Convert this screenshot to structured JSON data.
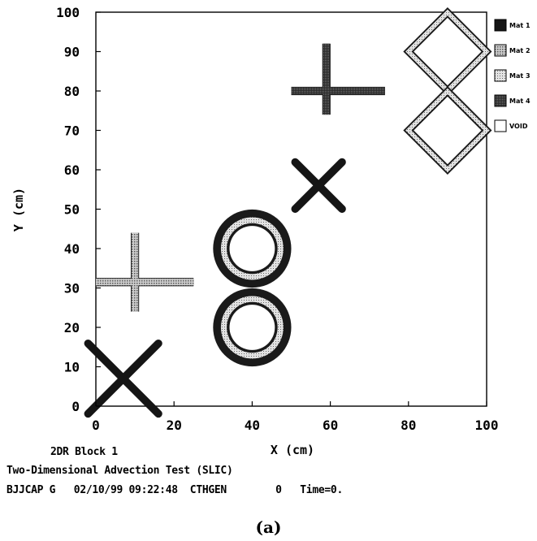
{
  "chart_data": {
    "type": "scatter",
    "title": "",
    "xlabel": "X (cm)",
    "ylabel": "Y (cm)",
    "xlim": [
      0,
      100
    ],
    "ylim": [
      0,
      100
    ],
    "x_ticks": [
      "0",
      "20",
      "40",
      "60",
      "80",
      "100"
    ],
    "y_ticks": [
      "0",
      "10",
      "20",
      "30",
      "40",
      "50",
      "60",
      "70",
      "80",
      "90",
      "100"
    ],
    "grid": false,
    "legend_position": "right",
    "legend": [
      {
        "label": "Mat 1",
        "color": "#111111"
      },
      {
        "label": "Mat 2",
        "color": "#9a9a9a"
      },
      {
        "label": "Mat 3",
        "color": "#bdbdbd"
      },
      {
        "label": "Mat 4",
        "color": "#3c3c3c"
      },
      {
        "label": "VOID",
        "color": "#ffffff"
      }
    ],
    "shapes": [
      {
        "kind": "x-cross",
        "center": [
          7,
          7
        ],
        "half_span": 9,
        "material": "Mat 1"
      },
      {
        "kind": "plus",
        "center": [
          10,
          31.5
        ],
        "horizontal": [
          0,
          25
        ],
        "vertical": [
          24,
          44
        ],
        "material": "Mat 2"
      },
      {
        "kind": "ring",
        "center": [
          40,
          20
        ],
        "outer_radius": 10,
        "material": "Mat 3"
      },
      {
        "kind": "ring",
        "center": [
          40,
          40
        ],
        "outer_radius": 10,
        "material": "Mat 3"
      },
      {
        "kind": "x-cross",
        "center": [
          57,
          56
        ],
        "half_span": 6,
        "material": "Mat 1"
      },
      {
        "kind": "plus",
        "center": [
          59,
          80
        ],
        "horizontal": [
          50,
          74
        ],
        "vertical": [
          74,
          92
        ],
        "material": "Mat 4"
      },
      {
        "kind": "diamond",
        "center": [
          90,
          90
        ],
        "half_diagonal": 10,
        "material": "Mat 3"
      },
      {
        "kind": "diamond",
        "center": [
          90,
          70
        ],
        "half_diagonal": 10,
        "material": "Mat 3"
      }
    ]
  },
  "footer": {
    "block": "2DR Block 1",
    "title": "Two-Dimensional Advection Test (SLIC)",
    "run_info": "BJJCAP G   02/10/99 09:22:48  CTHGEN        0   Time=0."
  },
  "caption": "(a)"
}
